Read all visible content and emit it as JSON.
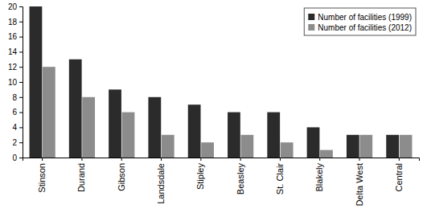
{
  "chart_data": {
    "type": "bar",
    "categories": [
      "Stinson",
      "Durand",
      "Gibson",
      "Landsdale",
      "Stipley",
      "Beasley",
      "St. Clair",
      "Blakely",
      "Delta West",
      "Central"
    ],
    "series": [
      {
        "name": "Number of facilities (1999)",
        "color": "#2b2b2b",
        "values": [
          20,
          13,
          9,
          8,
          7,
          6,
          6,
          4,
          3,
          3
        ]
      },
      {
        "name": "Number of facilities (2012)",
        "color": "#8c8c8c",
        "values": [
          12,
          8,
          6,
          3,
          2,
          3,
          2,
          1,
          3,
          3
        ]
      }
    ],
    "ylim": [
      0,
      20
    ],
    "yticks": [
      0,
      2,
      4,
      6,
      8,
      10,
      12,
      14,
      16,
      18,
      20
    ],
    "grid": false,
    "legend": "top-right"
  }
}
